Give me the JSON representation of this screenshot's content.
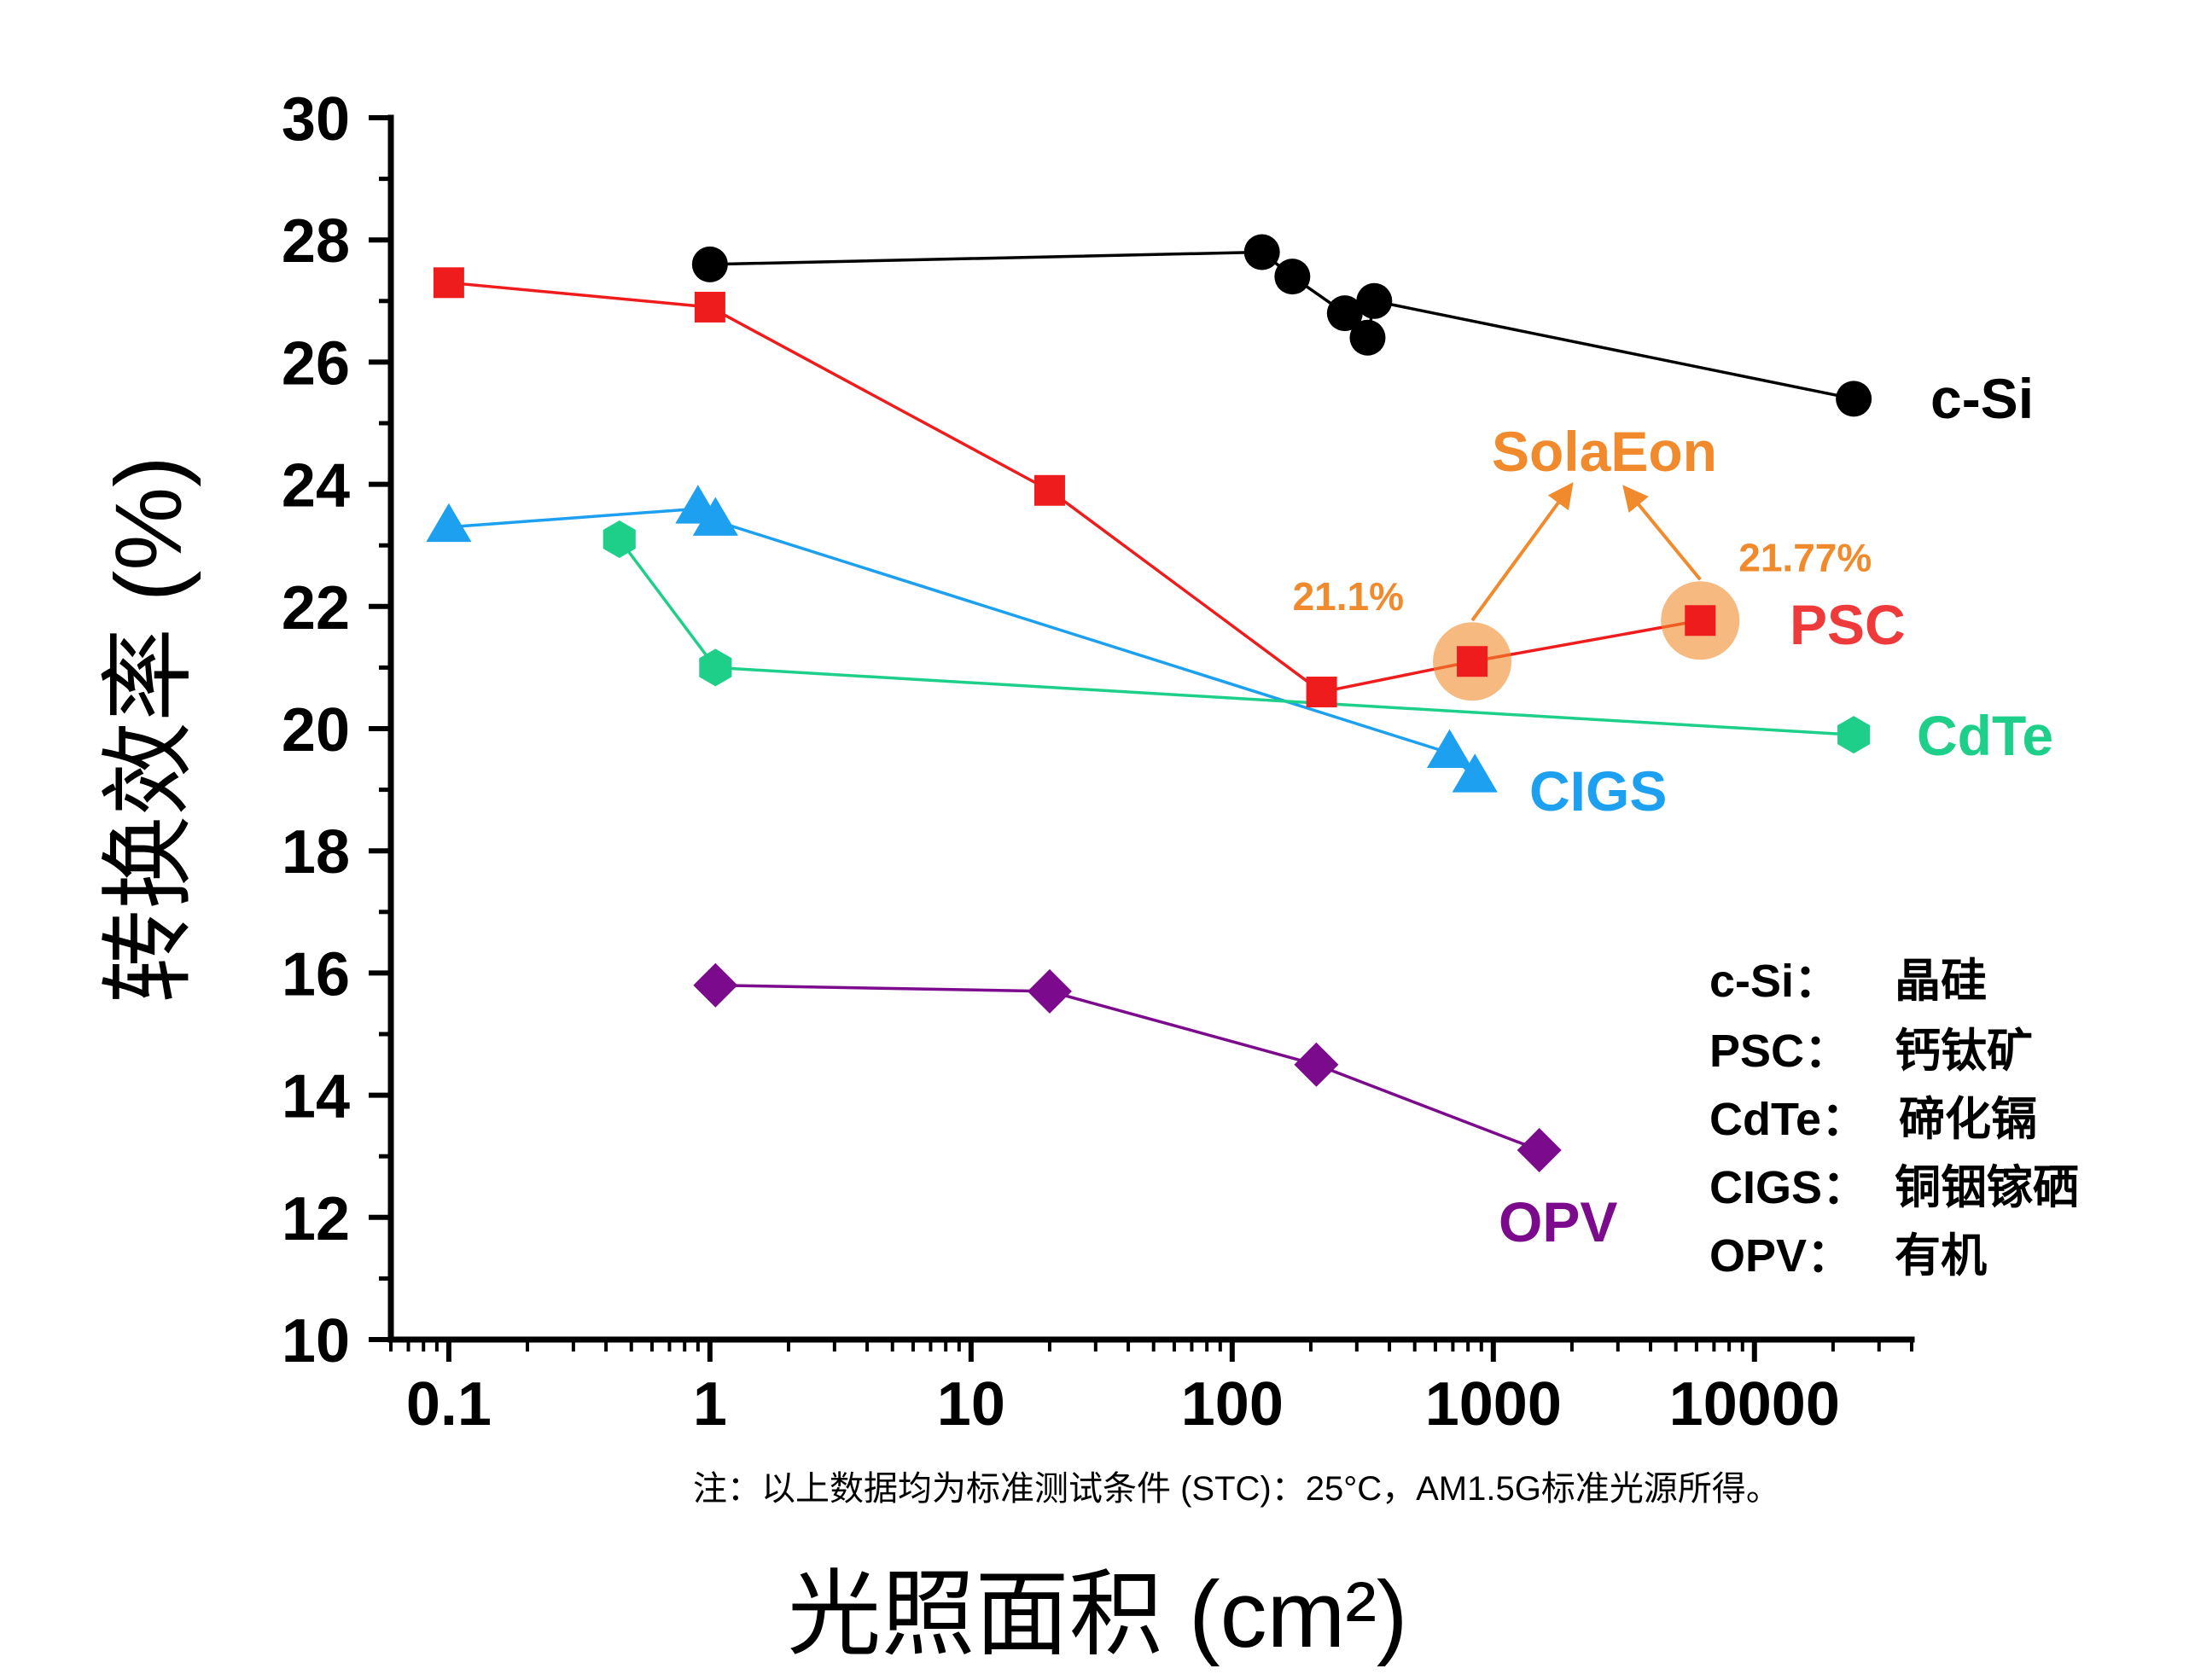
{
  "chart_data": {
    "type": "scatter",
    "x_scale": "log",
    "xlim": [
      0.06,
      40000
    ],
    "ylim": [
      10,
      30
    ],
    "xticks": [
      "0.1",
      "1",
      "10",
      "100",
      "1000",
      "10000"
    ],
    "yticks": [
      "10",
      "12",
      "14",
      "16",
      "18",
      "20",
      "22",
      "24",
      "26",
      "28",
      "30"
    ],
    "xlabel": "光照面积 (cm²)",
    "ylabel": "转换效率 (%)",
    "grid": false,
    "series": [
      {
        "name": "c-Si",
        "color": "#000000",
        "marker": "circle",
        "x": [
          1,
          130,
          170,
          270,
          330,
          350,
          24000
        ],
        "y": [
          27.6,
          27.8,
          27.4,
          26.8,
          26.4,
          27.0,
          25.4
        ]
      },
      {
        "name": "PSC",
        "color": "#ee1c1c",
        "marker": "square",
        "x": [
          0.1,
          1,
          20,
          220,
          830,
          6200
        ],
        "y": [
          27.3,
          26.9,
          23.9,
          20.6,
          21.1,
          21.77
        ]
      },
      {
        "name": "CIGS",
        "color": "#1ea0f0",
        "marker": "triangle",
        "x": [
          0.1,
          0.9,
          1.05,
          680,
          850
        ],
        "y": [
          23.3,
          23.6,
          23.4,
          19.6,
          19.2
        ]
      },
      {
        "name": "CdTe",
        "color": "#1ecf8a",
        "marker": "hexagon",
        "x": [
          0.45,
          1.05,
          24000
        ],
        "y": [
          23.1,
          21.0,
          19.9
        ]
      },
      {
        "name": "OPV",
        "color": "#7b0a8c",
        "marker": "diamond",
        "x": [
          1.05,
          20,
          210,
          1500
        ],
        "y": [
          15.8,
          15.7,
          14.5,
          13.1
        ]
      }
    ],
    "highlights": {
      "brand": "SolaEon",
      "color": "#f08a2c",
      "points": [
        {
          "x": 830,
          "y": 21.1,
          "label": "21.1%"
        },
        {
          "x": 6200,
          "y": 21.77,
          "label": "21.77%"
        }
      ]
    },
    "legend": [
      {
        "abbr": "c-Si：",
        "name": "晶硅"
      },
      {
        "abbr": "PSC：",
        "name": "钙钛矿"
      },
      {
        "abbr": "CdTe：",
        "name": "碲化镉"
      },
      {
        "abbr": "CIGS：",
        "name": "铜铟镓硒"
      },
      {
        "abbr": "OPV：",
        "name": "有机"
      }
    ],
    "note": "注：以上数据均为标准测试条件 (STC)：25°C，AM1.5G标准光源所得。"
  }
}
